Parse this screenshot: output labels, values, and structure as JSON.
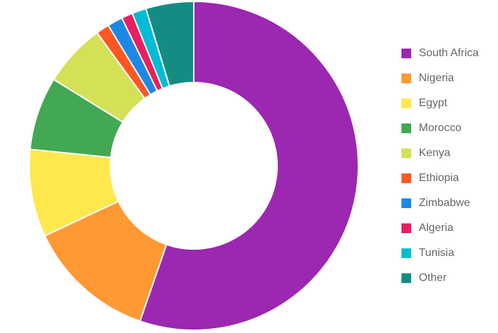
{
  "chart_data": {
    "type": "donut",
    "categories": [
      "South Africa",
      "Nigeria",
      "Egypt",
      "Morocco",
      "Kenya",
      "Ethiopia",
      "Zimbabwe",
      "Algeria",
      "Tunisia",
      "Other"
    ],
    "values": [
      55.3,
      12.7,
      8.6,
      7.2,
      6.2,
      1.3,
      1.5,
      1.1,
      1.4,
      4.7
    ],
    "colors": [
      "#9c27b0",
      "#ff9933",
      "#ffe84d",
      "#43a853",
      "#d4e157",
      "#ff5722",
      "#1e88e5",
      "#e91e63",
      "#00bcd4",
      "#138d84"
    ],
    "legend": "right"
  }
}
